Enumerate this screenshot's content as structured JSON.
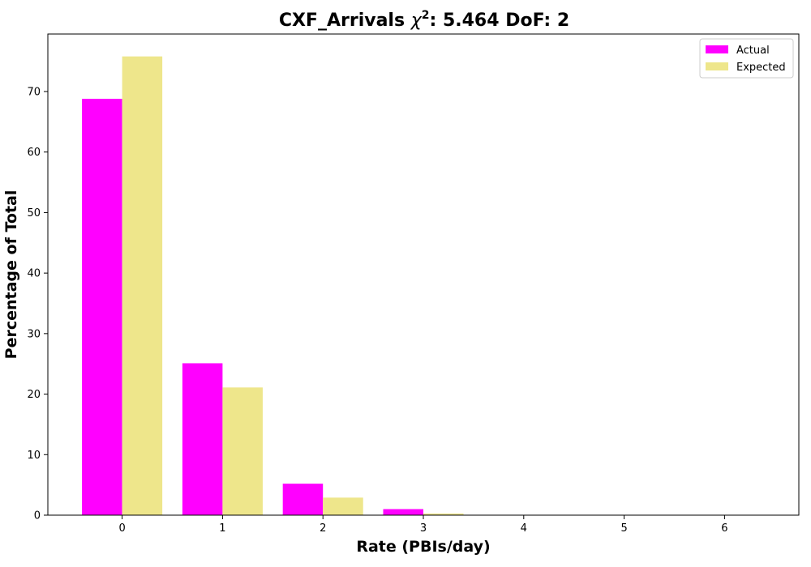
{
  "chart_data": {
    "type": "bar",
    "title_prefix": "CXF_Arrivals ",
    "title_chi": "χ",
    "title_sup": "2",
    "title_suffix": ": 5.464 DoF: 2",
    "xlabel": "Rate (PBIs/day)",
    "ylabel": "Percentage of Total",
    "categories": [
      "0",
      "1",
      "2",
      "3",
      "4",
      "5",
      "6"
    ],
    "x": [
      0,
      1,
      2,
      3,
      4,
      5,
      6
    ],
    "xlim": [
      -0.74,
      6.74
    ],
    "ylim": [
      0,
      79.5
    ],
    "yticks": [
      0,
      10,
      20,
      30,
      40,
      50,
      60,
      70
    ],
    "grid": false,
    "legend_position": "top-right",
    "series": [
      {
        "name": "Actual",
        "color": "#ff00ff",
        "values": [
          68.8,
          25.1,
          5.2,
          1.0,
          0,
          0,
          0
        ]
      },
      {
        "name": "Expected",
        "color": "#eee68b",
        "values": [
          75.8,
          21.1,
          2.9,
          0.27,
          0.02,
          0,
          0
        ]
      }
    ]
  }
}
